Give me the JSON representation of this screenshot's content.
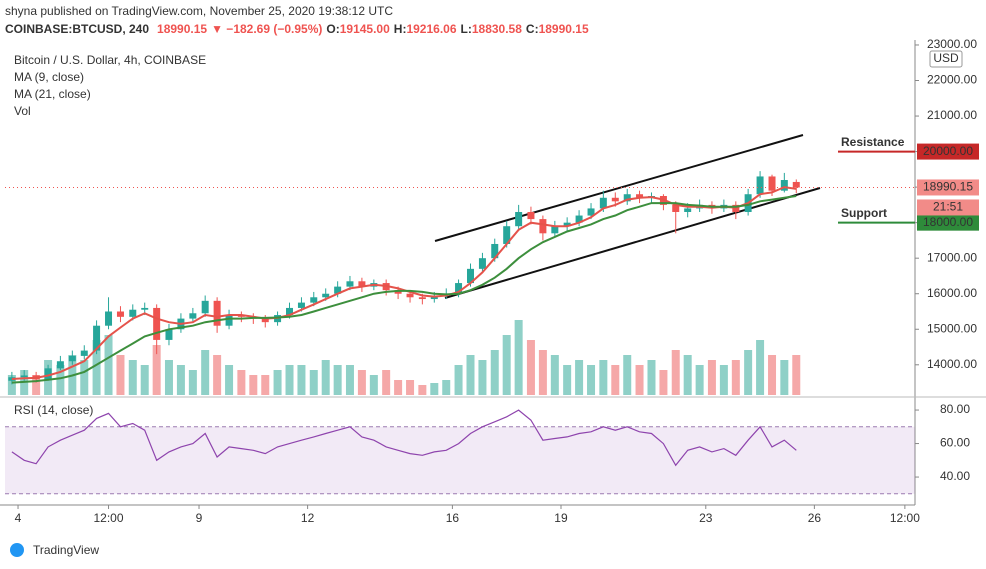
{
  "header": {
    "byline": "shyna published on TradingView.com, November 25, 2020 19:38:12 UTC",
    "symbol": "COINBASE:BTCUSD, 240",
    "last": "18990.15",
    "change": "▼ −182.69 (−0.95%)",
    "ohlc": [
      {
        "key": "O:",
        "value": "19145.00"
      },
      {
        "key": "H:",
        "value": "19216.06"
      },
      {
        "key": "L:",
        "value": "18830.58"
      },
      {
        "key": "C:",
        "value": "18990.15"
      }
    ]
  },
  "footer": "TradingView",
  "chart_data": {
    "type": "candlestick",
    "title": "Bitcoin / U.S. Dollar, 4h, COINBASE",
    "currency": "USD",
    "countdown": "21:51",
    "xlim": [
      3.64,
      28.78
    ],
    "xticks": [
      4,
      {
        "value": 6.5,
        "label": "12:00"
      },
      9,
      12,
      16,
      19,
      23,
      26,
      {
        "value": 28.5,
        "label": "12:00"
      }
    ],
    "ylim": [
      13150,
      23140
    ],
    "yticks": [
      {
        "value": 23000,
        "label": "23000.00"
      },
      {
        "value": 22000,
        "label": "22000.00"
      },
      {
        "value": 21000,
        "label": "21000.00"
      },
      {
        "value": 20000,
        "label": "20000.00"
      },
      {
        "value": 19000,
        "label": "19000.00"
      },
      {
        "value": 18000,
        "label": "18000.00"
      },
      {
        "value": 17000,
        "label": "17000.00"
      },
      {
        "value": 16000,
        "label": "16000.00"
      },
      {
        "value": 15000,
        "label": "15000.00"
      },
      {
        "value": 14000,
        "label": "14000.00"
      }
    ],
    "grid": false,
    "up_color": "#26a69a",
    "down_color": "#ef5350",
    "x": [
      3.83,
      4.17,
      4.5,
      4.83,
      5.17,
      5.5,
      5.83,
      6.17,
      6.5,
      6.83,
      7.17,
      7.5,
      7.83,
      8.17,
      8.5,
      8.83,
      9.17,
      9.5,
      9.83,
      10.17,
      10.5,
      10.83,
      11.17,
      11.5,
      11.83,
      12.17,
      12.5,
      12.83,
      13.17,
      13.5,
      13.83,
      14.17,
      14.5,
      14.83,
      15.17,
      15.5,
      15.83,
      16.17,
      16.5,
      16.83,
      17.17,
      17.5,
      17.83,
      18.17,
      18.5,
      18.83,
      19.17,
      19.5,
      19.83,
      20.17,
      20.5,
      20.83,
      21.17,
      21.5,
      21.83,
      22.17,
      22.5,
      22.83,
      23.17,
      23.5,
      23.83,
      24.17,
      24.5,
      24.83,
      25.17,
      25.5
    ],
    "open": [
      13550,
      13650,
      13700,
      13600,
      13900,
      14100,
      14250,
      14400,
      15100,
      15500,
      15350,
      15550,
      15600,
      14700,
      15000,
      15300,
      15450,
      15800,
      15100,
      15400,
      15350,
      15300,
      15200,
      15400,
      15600,
      15750,
      15900,
      16000,
      16200,
      16350,
      16200,
      16300,
      16100,
      16000,
      15900,
      15850,
      15950,
      16000,
      16300,
      16700,
      17000,
      17400,
      17900,
      18300,
      18100,
      17700,
      17900,
      18000,
      18200,
      18400,
      18700,
      18600,
      18800,
      18700,
      18750,
      18500,
      18300,
      18400,
      18500,
      18400,
      18500,
      18300,
      18800,
      19300,
      18900,
      19145
    ],
    "high": [
      13800,
      13850,
      13800,
      14000,
      14250,
      14400,
      14550,
      15250,
      15900,
      15650,
      15700,
      15750,
      15700,
      15150,
      15450,
      15600,
      15950,
      15900,
      15550,
      15500,
      15450,
      15400,
      15500,
      15750,
      15900,
      16050,
      16150,
      16350,
      16500,
      16450,
      16400,
      16400,
      16200,
      16100,
      16000,
      16050,
      16150,
      16400,
      16850,
      17150,
      17550,
      18050,
      18500,
      18450,
      18200,
      18050,
      18150,
      18350,
      18550,
      18900,
      18850,
      18950,
      18900,
      18850,
      18800,
      18600,
      18550,
      18650,
      18600,
      18650,
      18600,
      18950,
      19450,
      19350,
      19400,
      19216.06
    ],
    "low": [
      13450,
      13550,
      13500,
      13550,
      13850,
      14000,
      14150,
      14300,
      15000,
      15200,
      15250,
      15400,
      14300,
      14550,
      14900,
      15200,
      15350,
      14900,
      15000,
      15200,
      15150,
      15050,
      15100,
      15300,
      15500,
      15650,
      15800,
      15900,
      16100,
      16050,
      16100,
      15950,
      15850,
      15750,
      15700,
      15750,
      15850,
      15900,
      16200,
      16600,
      16900,
      17300,
      17800,
      17950,
      17500,
      17600,
      17750,
      17900,
      18100,
      18300,
      18450,
      18500,
      18550,
      18550,
      18350,
      17700,
      18150,
      18300,
      18250,
      18300,
      18100,
      18200,
      18700,
      18750,
      18850,
      18830.58
    ],
    "close": [
      13650,
      13700,
      13600,
      13900,
      14100,
      14250,
      14400,
      15100,
      15500,
      15350,
      15550,
      15600,
      14700,
      15000,
      15300,
      15450,
      15800,
      15100,
      15400,
      15350,
      15300,
      15200,
      15400,
      15600,
      15750,
      15900,
      16000,
      16200,
      16350,
      16200,
      16300,
      16100,
      16000,
      15900,
      15850,
      15950,
      16000,
      16300,
      16700,
      17000,
      17400,
      17900,
      18300,
      18100,
      17700,
      17900,
      18000,
      18200,
      18400,
      18700,
      18600,
      18800,
      18700,
      18750,
      18500,
      18300,
      18400,
      18500,
      18400,
      18500,
      18300,
      18800,
      19300,
      18900,
      19200,
      18990.15
    ],
    "series": [
      {
        "name": "MA (9, close)",
        "color": "#e5534b",
        "values": [
          13600,
          13620,
          13630,
          13700,
          13800,
          13950,
          14100,
          14450,
          14800,
          15050,
          15300,
          15450,
          15300,
          15200,
          15150,
          15200,
          15400,
          15350,
          15400,
          15400,
          15350,
          15300,
          15320,
          15400,
          15550,
          15700,
          15850,
          16000,
          16150,
          16200,
          16250,
          16220,
          16150,
          16050,
          15950,
          15920,
          15950,
          16050,
          16300,
          16600,
          17000,
          17400,
          17800,
          18000,
          17950,
          17900,
          17900,
          18000,
          18150,
          18400,
          18500,
          18650,
          18700,
          18720,
          18650,
          18500,
          18450,
          18450,
          18420,
          18450,
          18420,
          18550,
          18800,
          18850,
          19000,
          18950
        ]
      },
      {
        "name": "MA (21, close)",
        "color": "#3d8f3d",
        "values": [
          13500,
          13520,
          13540,
          13580,
          13620,
          13700,
          13800,
          14000,
          14200,
          14400,
          14600,
          14800,
          14900,
          15000,
          15050,
          15100,
          15200,
          15250,
          15300,
          15300,
          15320,
          15320,
          15330,
          15350,
          15400,
          15500,
          15600,
          15700,
          15800,
          15900,
          16000,
          16050,
          16080,
          16080,
          16050,
          16000,
          15980,
          16000,
          16100,
          16250,
          16450,
          16700,
          17000,
          17250,
          17450,
          17600,
          17750,
          17850,
          17950,
          18100,
          18200,
          18350,
          18450,
          18550,
          18550,
          18550,
          18500,
          18480,
          18450,
          18450,
          18450,
          18500,
          18600,
          18650,
          18700,
          18750
        ]
      }
    ],
    "volume": {
      "name": "Vol",
      "ylim": [
        0,
        100
      ],
      "up_color": "#8fd0c7",
      "down_color": "#f5a8a8",
      "values": [
        20,
        25,
        20,
        35,
        30,
        40,
        35,
        55,
        60,
        40,
        35,
        30,
        50,
        35,
        30,
        25,
        45,
        40,
        30,
        25,
        20,
        20,
        25,
        30,
        30,
        25,
        35,
        30,
        30,
        25,
        20,
        25,
        15,
        15,
        10,
        12,
        15,
        30,
        40,
        35,
        45,
        60,
        75,
        55,
        45,
        40,
        30,
        35,
        30,
        35,
        30,
        40,
        30,
        35,
        25,
        45,
        40,
        30,
        35,
        30,
        35,
        45,
        55,
        40,
        35,
        40
      ]
    },
    "rsi": {
      "name": "RSI (14, close)",
      "color": "#8e44ad",
      "band": [
        30,
        70
      ],
      "ylim": [
        26.3,
        86
      ],
      "yticks": [
        {
          "value": 80,
          "label": "80.00"
        },
        {
          "value": 60,
          "label": "60.00"
        },
        {
          "value": 40,
          "label": "40.00"
        }
      ],
      "values": [
        55,
        50,
        48,
        58,
        62,
        65,
        68,
        75,
        78,
        70,
        72,
        68,
        50,
        55,
        58,
        60,
        66,
        52,
        58,
        57,
        56,
        54,
        58,
        60,
        62,
        64,
        66,
        68,
        70,
        64,
        62,
        58,
        56,
        54,
        53,
        55,
        56,
        60,
        66,
        70,
        73,
        76,
        80,
        74,
        62,
        63,
        64,
        66,
        67,
        70,
        68,
        70,
        67,
        66,
        60,
        47,
        56,
        58,
        55,
        57,
        53,
        62,
        70,
        58,
        62,
        56
      ]
    },
    "annotations": [
      {
        "text": "Resistance",
        "value": 20000,
        "label": "20000.00",
        "color": "#c62828",
        "text_color": "#2e7d32"
      },
      {
        "text": "Support",
        "value": 18000,
        "label": "18000.00",
        "color": "#2e8b3a",
        "text_color": "#2e7d32"
      }
    ]
  }
}
